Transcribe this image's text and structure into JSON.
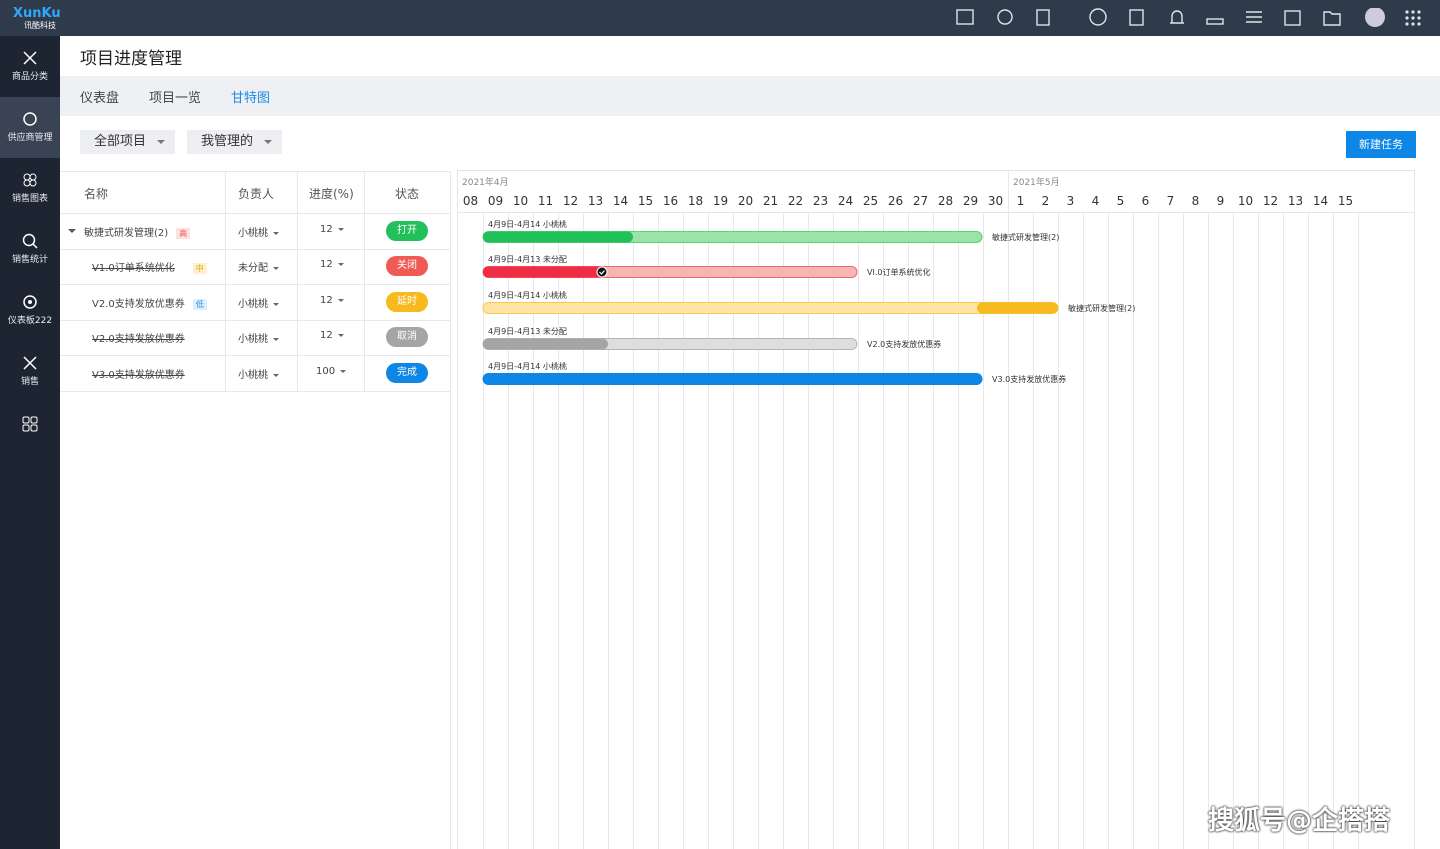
{
  "logo": {
    "brand": "XunKu",
    "sub": "讯酷科技"
  },
  "sidebar": {
    "items": [
      "商品分类",
      "供应商管理",
      "销售图表",
      "销售统计",
      "仪表板222",
      "销售"
    ]
  },
  "header": {
    "title": "项目进度管理"
  },
  "tabs": [
    "仪表盘",
    "项目一览",
    "甘特图"
  ],
  "filters": [
    "全部项目",
    "我管理的"
  ],
  "button": "新建任务",
  "table": {
    "columns": [
      "名称",
      "负责人",
      "进度(%)",
      "状态"
    ],
    "rows": [
      {
        "name": "敏捷式研发管理(2)",
        "tag": "高",
        "owner": "小桃桃",
        "progress": 12,
        "status": "打开"
      },
      {
        "name": "V1.0订单系统优化",
        "tag": "中",
        "owner": "未分配",
        "progress": 12,
        "status": "关闭"
      },
      {
        "name": "V2.0支持发放优惠券",
        "tag": "低",
        "owner": "小桃桃",
        "progress": 12,
        "status": "延时"
      },
      {
        "name": "V2.0支持发放优惠券",
        "owner": "小桃桃",
        "progress": 12,
        "status": "取消"
      },
      {
        "name": "V3.0支持发放优惠券",
        "owner": "小桃桃",
        "progress": 100,
        "status": "完成"
      }
    ]
  },
  "gantt": {
    "months": [
      "2021年4月",
      "2021年5月"
    ],
    "days": [
      "08",
      "09",
      "10",
      "11",
      "12",
      "13",
      "14",
      "15",
      "16",
      "18",
      "19",
      "20",
      "21",
      "22",
      "23",
      "24",
      "25",
      "26",
      "27",
      "28",
      "29",
      "30",
      "1",
      "2",
      "3",
      "4",
      "5",
      "6",
      "7",
      "8",
      "9",
      "10",
      "12",
      "13",
      "14",
      "15"
    ],
    "bars": [
      {
        "label": "4月9日-4月14  小桃桃",
        "name": "敏捷式研发管理(2)"
      },
      {
        "label": "4月9日-4月13  未分配",
        "name": "VI.0订单系统优化"
      },
      {
        "label": "4月9日-4月14  小桃桃",
        "name": "敏捷式研发管理(2)"
      },
      {
        "label": "4月9日-4月13  未分配",
        "name": "V2.0支持发放优惠券"
      },
      {
        "label": "4月9日-4月14  小桃桃",
        "name": "V3.0支持发放优惠券"
      }
    ]
  },
  "watermark": "搜狐号@企搭搭"
}
